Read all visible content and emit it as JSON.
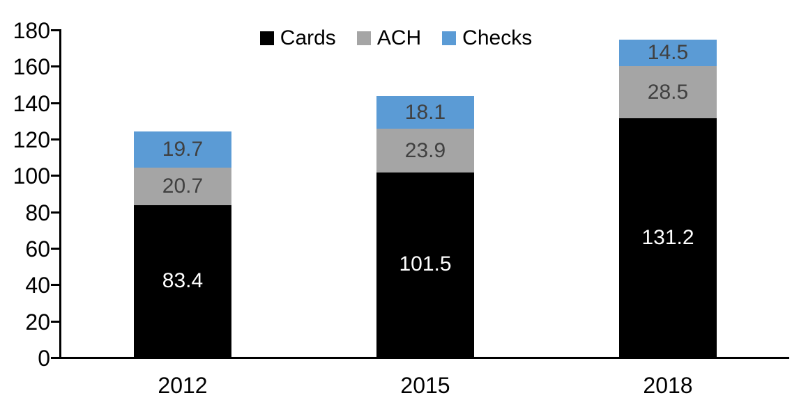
{
  "chart_data": {
    "type": "bar",
    "stacked": true,
    "title": "",
    "xlabel": "",
    "ylabel": "",
    "categories": [
      "2012",
      "2015",
      "2018"
    ],
    "series": [
      {
        "name": "Cards",
        "color": "#000000",
        "label_color": "#FFFFFF",
        "values": [
          83.4,
          101.5,
          131.2
        ]
      },
      {
        "name": "ACH",
        "color": "#A5A5A5",
        "label_color": "#404040",
        "values": [
          20.7,
          23.9,
          28.5
        ]
      },
      {
        "name": "Checks",
        "color": "#5B9BD5",
        "label_color": "#404040",
        "values": [
          19.7,
          18.1,
          14.5
        ]
      }
    ],
    "totals": [
      123.8,
      143.5,
      174.2
    ],
    "ylim": [
      0,
      180
    ],
    "yticks": [
      "0",
      "20",
      "40",
      "60",
      "80",
      "100",
      "120",
      "140",
      "160",
      "180"
    ],
    "grid": false,
    "legend_position": "top",
    "axis_color": "#000000",
    "background": "#FFFFFF"
  }
}
